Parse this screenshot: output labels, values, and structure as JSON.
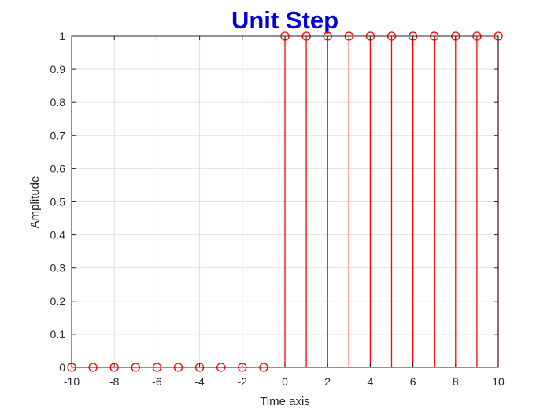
{
  "chart_data": {
    "type": "stem",
    "title": "Unit Step",
    "xlabel": "Time axis",
    "ylabel": "Amplitude",
    "xlim": [
      -10,
      10
    ],
    "ylim": [
      0,
      1
    ],
    "grid": true,
    "x_ticks": [
      "-10",
      "-8",
      "-6",
      "-4",
      "-2",
      "0",
      "2",
      "4",
      "6",
      "8",
      "10"
    ],
    "y_ticks": [
      "0",
      "0.1",
      "0.2",
      "0.3",
      "0.4",
      "0.5",
      "0.6",
      "0.7",
      "0.8",
      "0.9",
      "1"
    ],
    "series": [
      {
        "color": "#ff0000",
        "marker": "circle",
        "x": [
          -10,
          -9,
          -8,
          -7,
          -6,
          -5,
          -4,
          -3,
          -2,
          -1,
          0,
          1,
          2,
          3,
          4,
          5,
          6,
          7,
          8,
          9,
          10
        ],
        "y": [
          0,
          0,
          0,
          0,
          0,
          0,
          0,
          0,
          0,
          0,
          1,
          1,
          1,
          1,
          1,
          1,
          1,
          1,
          1,
          1,
          1
        ]
      }
    ],
    "colors": {
      "title": "#0000d9",
      "stem": "#ff0000",
      "grid": "#e0e0e0",
      "axis": "#262626"
    }
  }
}
